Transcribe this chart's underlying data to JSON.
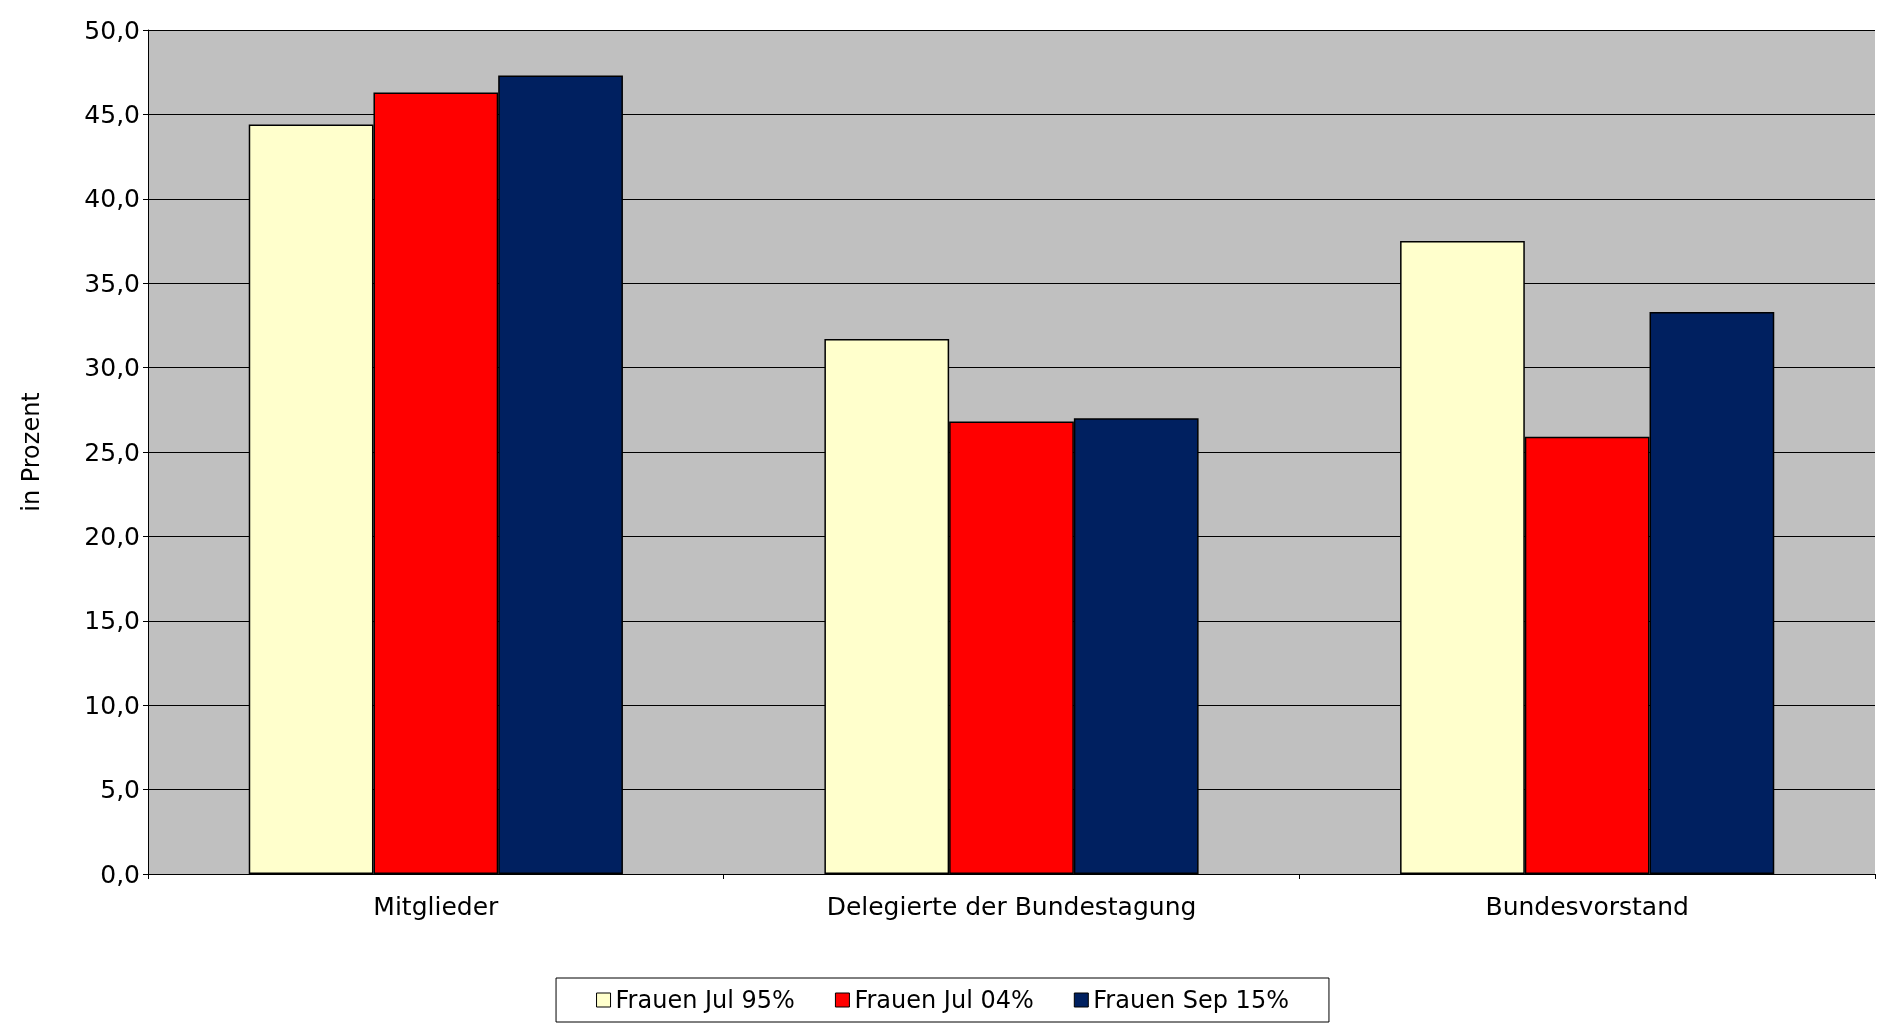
{
  "chart_data": {
    "type": "bar",
    "ylabel": "in Prozent",
    "categories": [
      "Mitglieder",
      "Delegierte der Bundestagung",
      "Bundesvorstand"
    ],
    "series": [
      {
        "name": "Frauen Jul 95%",
        "color": "#ffffcc",
        "values": [
          44.4,
          31.7,
          37.5
        ]
      },
      {
        "name": "Frauen Jul 04%",
        "color": "#ff0000",
        "values": [
          46.3,
          26.8,
          25.9
        ]
      },
      {
        "name": "Frauen Sep 15%",
        "color": "#002060",
        "values": [
          47.3,
          27.0,
          33.3
        ]
      }
    ],
    "ylim": [
      0,
      50
    ],
    "yticks": [
      {
        "value": 0,
        "label": "0,0"
      },
      {
        "value": 5,
        "label": "5,0"
      },
      {
        "value": 10,
        "label": "10,0"
      },
      {
        "value": 15,
        "label": "15,0"
      },
      {
        "value": 20,
        "label": "20,0"
      },
      {
        "value": 25,
        "label": "25,0"
      },
      {
        "value": 30,
        "label": "30,0"
      },
      {
        "value": 35,
        "label": "35,0"
      },
      {
        "value": 40,
        "label": "40,0"
      },
      {
        "value": 45,
        "label": "45,0"
      },
      {
        "value": 50,
        "label": "50,0"
      }
    ],
    "grid": "y",
    "legend": "bottom"
  }
}
